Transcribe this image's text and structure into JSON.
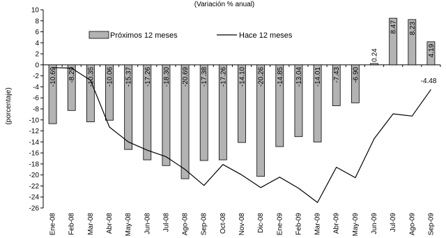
{
  "chart_data": {
    "type": "bar",
    "subtitle": "(Variación % anual)",
    "ylabel": "(porcentaje)",
    "ylim": [
      -26,
      10
    ],
    "y_ticks": [
      10,
      8,
      6,
      4,
      2,
      0,
      -2,
      -4,
      -6,
      -8,
      -10,
      -12,
      -14,
      -16,
      -18,
      -20,
      -22,
      -24,
      -26
    ],
    "categories": [
      "Ene-08",
      "Feb-08",
      "Mar-08",
      "Abr-08",
      "May-08",
      "Jun-08",
      "Jul-08",
      "Ago-08",
      "Sep-08",
      "Oct-08",
      "Nov-08",
      "Dic-08",
      "Ene-09",
      "Feb-09",
      "Mar-09",
      "Abr-09",
      "May-09",
      "Jun-09",
      "Jul-09",
      "Ago-09",
      "Sep-09"
    ],
    "legend_position": "top",
    "colors": {
      "bar_fill": "#b3b3b3",
      "bar_stroke": "#000000",
      "line": "#000000"
    },
    "series": [
      {
        "name": "Próximos 12 meses",
        "type": "bar",
        "values": [
          -10.69,
          -8.29,
          -10.35,
          -10.06,
          -15.37,
          -17.26,
          -18.3,
          -20.69,
          -17.38,
          -17.26,
          -14.1,
          -20.26,
          -14.85,
          -13.04,
          -14.01,
          -7.43,
          -6.9,
          0.24,
          8.47,
          8.23,
          4.19
        ],
        "labels": [
          "-10.69",
          "-8.29",
          "-10.35",
          "-10.06",
          "-15.37",
          "-17.26",
          "-18.30",
          "-20.69",
          "-17.38",
          "-17.26",
          "-14.10",
          "-20.26",
          "-14.85",
          "-13.04",
          "-14.01",
          "-7.43",
          "-6.90",
          "0.24",
          "8.47",
          "8.23",
          "4.19"
        ]
      },
      {
        "name": "Hace 12 meses",
        "type": "line",
        "values": [
          -0.5,
          -0.6,
          -2.8,
          -11.3,
          -14.0,
          -15.5,
          -16.7,
          -19.0,
          -21.9,
          -18.1,
          -20.0,
          -22.3,
          -20.4,
          -22.4,
          -25.0,
          -18.6,
          -20.5,
          -13.4,
          -8.9,
          -9.3,
          -4.48
        ],
        "end_label": "-4.48"
      }
    ]
  }
}
